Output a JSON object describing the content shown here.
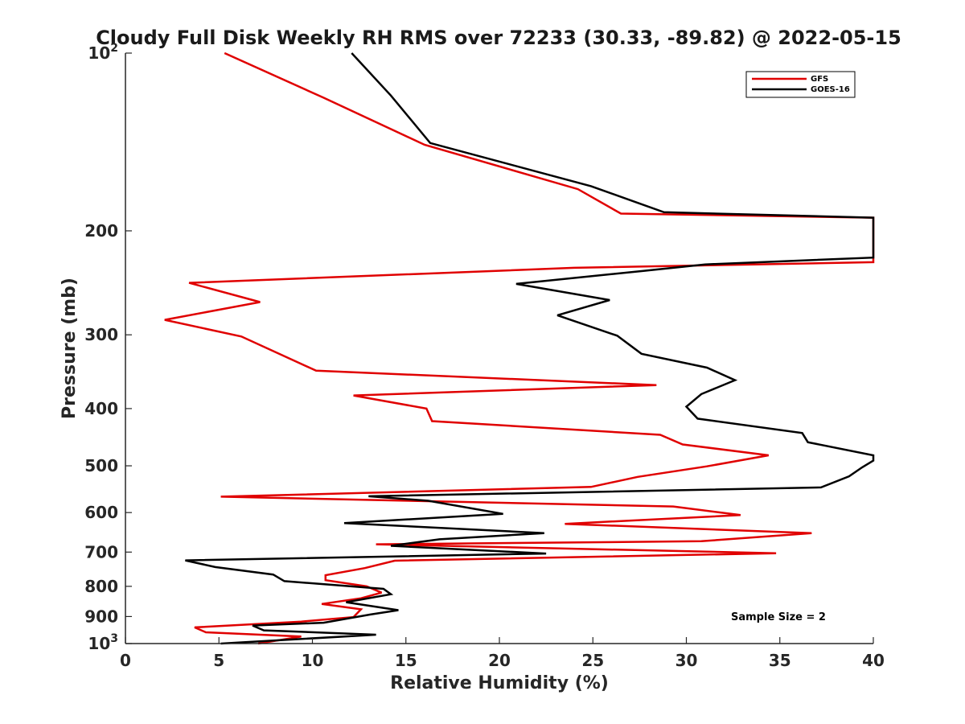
{
  "chart_data": {
    "type": "line",
    "title": "Cloudy Full Disk Weekly RH RMS over 72233 (30.33, -89.82) @ 2022-05-15",
    "xlabel": "Relative Humidity (%)",
    "ylabel": "Pressure (mb)",
    "xlim": [
      0,
      40
    ],
    "ylim": [
      100,
      1000
    ],
    "yscale": "log",
    "y_reversed": true,
    "x_ticks": [
      0,
      5,
      10,
      15,
      20,
      25,
      30,
      35,
      40
    ],
    "x_tick_labels": [
      "0",
      "5",
      "10",
      "15",
      "20",
      "25",
      "30",
      "35",
      "40"
    ],
    "y_ticks": [
      100,
      200,
      300,
      400,
      500,
      600,
      700,
      800,
      900,
      1000
    ],
    "y_tick_labels": [
      {
        "base": "10",
        "sup": "2"
      },
      {
        "base": "200",
        "sup": ""
      },
      {
        "base": "300",
        "sup": ""
      },
      {
        "base": "400",
        "sup": ""
      },
      {
        "base": "500",
        "sup": ""
      },
      {
        "base": "600",
        "sup": ""
      },
      {
        "base": "700",
        "sup": ""
      },
      {
        "base": "800",
        "sup": ""
      },
      {
        "base": "900",
        "sup": ""
      },
      {
        "base": "10",
        "sup": "3"
      }
    ],
    "legend_position": "top-right",
    "annotation": "Sample Size = 2",
    "series": [
      {
        "name": "GFS",
        "color": "#e00000",
        "points": [
          [
            5.3,
            100
          ],
          [
            10.6,
            119
          ],
          [
            16.0,
            143
          ],
          [
            24.2,
            170
          ],
          [
            26.5,
            187
          ],
          [
            40.0,
            190
          ],
          [
            40.0,
            226
          ],
          [
            24.0,
            231
          ],
          [
            3.4,
            245
          ],
          [
            7.2,
            264
          ],
          [
            2.1,
            283
          ],
          [
            6.2,
            302
          ],
          [
            10.2,
            345
          ],
          [
            28.4,
            365
          ],
          [
            12.2,
            380
          ],
          [
            16.1,
            400
          ],
          [
            16.4,
            420
          ],
          [
            28.6,
            443
          ],
          [
            29.8,
            460
          ],
          [
            34.4,
            480
          ],
          [
            31.1,
            501
          ],
          [
            27.4,
            522
          ],
          [
            24.9,
            543
          ],
          [
            5.1,
            564
          ],
          [
            29.3,
            586
          ],
          [
            32.9,
            606
          ],
          [
            23.5,
            627
          ],
          [
            36.7,
            650
          ],
          [
            30.8,
            671
          ],
          [
            13.4,
            679
          ],
          [
            34.8,
            703
          ],
          [
            14.4,
            724
          ],
          [
            12.8,
            745
          ],
          [
            10.7,
            766
          ],
          [
            10.7,
            781
          ],
          [
            12.9,
            800
          ],
          [
            13.7,
            820
          ],
          [
            12.6,
            838
          ],
          [
            10.5,
            857
          ],
          [
            12.6,
            875
          ],
          [
            12.2,
            902
          ],
          [
            9.4,
            918
          ],
          [
            3.7,
            939
          ],
          [
            4.3,
            957
          ],
          [
            9.4,
            973
          ],
          [
            7.1,
            1000
          ]
        ]
      },
      {
        "name": "GOES-16",
        "color": "#000000",
        "points": [
          [
            12.1,
            100
          ],
          [
            14.2,
            118
          ],
          [
            16.3,
            142
          ],
          [
            24.9,
            168
          ],
          [
            28.8,
            186
          ],
          [
            40.0,
            190
          ],
          [
            40.0,
            222
          ],
          [
            31.0,
            228
          ],
          [
            27.6,
            234
          ],
          [
            20.9,
            246
          ],
          [
            25.9,
            262
          ],
          [
            23.1,
            278
          ],
          [
            26.3,
            301
          ],
          [
            27.6,
            323
          ],
          [
            31.1,
            341
          ],
          [
            32.6,
            358
          ],
          [
            30.8,
            378
          ],
          [
            30.0,
            397
          ],
          [
            30.6,
            416
          ],
          [
            36.2,
            440
          ],
          [
            36.5,
            456
          ],
          [
            40.0,
            480
          ],
          [
            40.0,
            490
          ],
          [
            39.4,
            503
          ],
          [
            38.7,
            521
          ],
          [
            37.2,
            544
          ],
          [
            13.0,
            563
          ],
          [
            16.2,
            573
          ],
          [
            20.2,
            603
          ],
          [
            11.7,
            625
          ],
          [
            22.4,
            650
          ],
          [
            16.8,
            666
          ],
          [
            14.2,
            683
          ],
          [
            22.5,
            704
          ],
          [
            3.2,
            723
          ],
          [
            4.8,
            742
          ],
          [
            7.9,
            764
          ],
          [
            8.5,
            784
          ],
          [
            13.8,
            808
          ],
          [
            14.2,
            825
          ],
          [
            11.8,
            851
          ],
          [
            14.6,
            878
          ],
          [
            13.1,
            893
          ],
          [
            10.6,
            922
          ],
          [
            6.8,
            932
          ],
          [
            7.4,
            950
          ],
          [
            13.4,
            966
          ],
          [
            5.1,
            1000
          ]
        ]
      }
    ]
  }
}
